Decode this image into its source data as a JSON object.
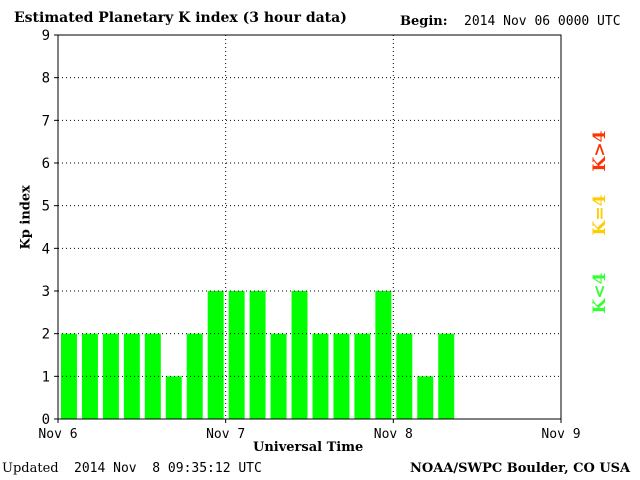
{
  "header": {
    "title": "Estimated Planetary K index (3 hour data)",
    "begin_label": "Begin:",
    "begin_value": "2014 Nov 06 0000 UTC"
  },
  "footer": {
    "updated_label": "Updated",
    "updated_value": "2014 Nov  8 09:35:12 UTC",
    "credit": "NOAA/SWPC Boulder, CO USA"
  },
  "legend": {
    "high": {
      "label": "K>4",
      "color": "#ff3300"
    },
    "equal": {
      "label": "K=4",
      "color": "#ffcc00"
    },
    "low": {
      "label": "K<4",
      "color": "#33ff33"
    }
  },
  "chart_data": {
    "type": "bar",
    "title": "Estimated Planetary K index (3 hour data)",
    "xlabel": "Universal Time",
    "ylabel": "Kp index",
    "ylim": [
      0,
      9
    ],
    "yticks": [
      0,
      1,
      2,
      3,
      4,
      5,
      6,
      7,
      8,
      9
    ],
    "xticks": [
      "Nov 6",
      "Nov 7",
      "Nov 8",
      "Nov 9"
    ],
    "slots_total": 24,
    "grid": true,
    "bar_color": "#00ff00",
    "values": [
      2,
      2,
      2,
      2,
      2,
      1,
      2,
      3,
      3,
      3,
      2,
      3,
      2,
      2,
      2,
      3,
      2,
      1,
      2
    ]
  }
}
